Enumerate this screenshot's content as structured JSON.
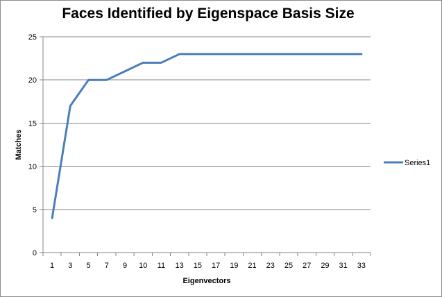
{
  "chart_data": {
    "type": "line",
    "title": "Faces Identified by Eigenspace Basis Size",
    "xlabel": "Eigenvectors",
    "ylabel": "Matches",
    "x_tick_labels": [
      "1",
      "3",
      "5",
      "7",
      "9",
      "10",
      "11",
      "13",
      "15",
      "17",
      "19",
      "21",
      "23",
      "25",
      "27",
      "29",
      "31",
      "33"
    ],
    "y_ticks": [
      0,
      5,
      10,
      15,
      20,
      25
    ],
    "ylim": [
      0,
      25
    ],
    "grid": true,
    "legend_position": "right",
    "series": [
      {
        "name": "Series1",
        "color": "#4a7ebb",
        "values": [
          4,
          17,
          20,
          20,
          21,
          22,
          22,
          23,
          23,
          23,
          23,
          23,
          23,
          23,
          23,
          23,
          23,
          23
        ]
      }
    ]
  }
}
